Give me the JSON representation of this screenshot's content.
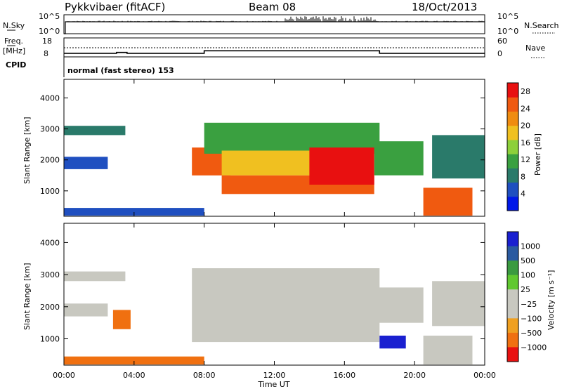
{
  "header": {
    "station": "Pykkvibaer (fitACF)",
    "beam": "Beam 08",
    "date": "18/Oct/2013"
  },
  "summary": {
    "nsky_label": "N.Sky",
    "nsky_ticks": [
      "10^5",
      "10^0"
    ],
    "nsearch_label": "N.Search",
    "nsearch_ticks": [
      "10^5",
      "10^0"
    ],
    "freq_label": "Freq.",
    "freq_unit": "[MHz]",
    "freq_ticks": [
      "18",
      "8"
    ],
    "nave_label": "Nave",
    "nave_ticks": [
      "60",
      "0"
    ],
    "cpid_label": "CPID",
    "cpid_text": "normal (fast stereo) 153",
    "freq_steps": [
      {
        "t": 0,
        "v": 9.7
      },
      {
        "t": 3,
        "v": 10.2
      },
      {
        "t": 3.6,
        "v": 9.7
      },
      {
        "t": 8,
        "v": 11.2
      },
      {
        "t": 18,
        "v": 9.7
      },
      {
        "t": 24,
        "v": 9.7
      }
    ]
  },
  "colors": {
    "power_scale": [
      "#0018e8",
      "#1f4fc0",
      "#2a7a6a",
      "#3aa040",
      "#8dd03a",
      "#f0c020",
      "#f08c10",
      "#f05a10",
      "#e81010"
    ],
    "velocity_scale": [
      "#1a20d0",
      "#2a5aa0",
      "#3a9a40",
      "#60c830",
      "#c8c8c0",
      "#c8c8c0",
      "#f0a020",
      "#f07010",
      "#e81010"
    ]
  },
  "chart_data": [
    {
      "type": "heatmap",
      "name": "power",
      "xlabel": "Time UT",
      "ylabel": "Slant Range [km]",
      "xlim": [
        0,
        24
      ],
      "ylim": [
        180,
        4600
      ],
      "x_ticks": [
        "00:00",
        "04:00",
        "08:00",
        "12:00",
        "16:00",
        "20:00",
        "00:00"
      ],
      "y_ticks": [
        1000,
        2000,
        3000,
        4000
      ],
      "colorbar_label": "Power [dB]",
      "colorbar_ticks": [
        "4",
        "8",
        "12",
        "16",
        "20",
        "24",
        "28"
      ],
      "colorbar_range": [
        0,
        30
      ],
      "regions": [
        {
          "t0": 0,
          "t1": 3.5,
          "r0": 2800,
          "r1": 3100,
          "value": 8
        },
        {
          "t0": 0,
          "t1": 2.5,
          "r0": 1700,
          "r1": 2100,
          "value": 6
        },
        {
          "t0": 0,
          "t1": 8,
          "r0": 200,
          "r1": 450,
          "value": 6
        },
        {
          "t0": 7.3,
          "t1": 9.5,
          "r0": 1500,
          "r1": 2400,
          "value": 24
        },
        {
          "t0": 8,
          "t1": 18,
          "r0": 2200,
          "r1": 3200,
          "value": 12
        },
        {
          "t0": 9,
          "t1": 17.7,
          "r0": 1500,
          "r1": 2300,
          "value": 18
        },
        {
          "t0": 9,
          "t1": 17.7,
          "r0": 900,
          "r1": 1500,
          "value": 26
        },
        {
          "t0": 14,
          "t1": 17.7,
          "r0": 1200,
          "r1": 2400,
          "value": 28
        },
        {
          "t0": 17.7,
          "t1": 20.5,
          "r0": 1500,
          "r1": 2600,
          "value": 10
        },
        {
          "t0": 20.5,
          "t1": 23.3,
          "r0": 200,
          "r1": 1100,
          "value": 26
        },
        {
          "t0": 21,
          "t1": 24,
          "r0": 1400,
          "r1": 2800,
          "value": 8
        }
      ]
    },
    {
      "type": "heatmap",
      "name": "velocity",
      "xlabel": "Time UT",
      "ylabel": "Slant Range [km]",
      "xlim": [
        0,
        24
      ],
      "ylim": [
        180,
        4600
      ],
      "x_ticks": [
        "00:00",
        "04:00",
        "08:00",
        "12:00",
        "16:00",
        "20:00",
        "00:00"
      ],
      "y_ticks": [
        1000,
        2000,
        3000,
        4000
      ],
      "colorbar_label": "Velocity [m s⁻¹]",
      "colorbar_ticks": [
        "1000",
        "500",
        "100",
        "25",
        "−25",
        "−100",
        "−500",
        "−1000"
      ],
      "regions": [
        {
          "t0": 0,
          "t1": 3.5,
          "r0": 2800,
          "r1": 3100,
          "value": 0
        },
        {
          "t0": 0,
          "t1": 2.5,
          "r0": 1700,
          "r1": 2100,
          "value": 0
        },
        {
          "t0": 2.8,
          "t1": 3.8,
          "r0": 1300,
          "r1": 1900,
          "value": -150
        },
        {
          "t0": 0,
          "t1": 8,
          "r0": 200,
          "r1": 450,
          "value": -120
        },
        {
          "t0": 7.3,
          "t1": 18,
          "r0": 900,
          "r1": 3200,
          "value": 0
        },
        {
          "t0": 17.7,
          "t1": 20.5,
          "r0": 1500,
          "r1": 2600,
          "value": 0
        },
        {
          "t0": 18,
          "t1": 19.5,
          "r0": 700,
          "r1": 1100,
          "value": 600
        },
        {
          "t0": 20.5,
          "t1": 23.3,
          "r0": 200,
          "r1": 1100,
          "value": 0
        },
        {
          "t0": 21,
          "t1": 24,
          "r0": 1400,
          "r1": 2800,
          "value": 0
        }
      ]
    }
  ]
}
